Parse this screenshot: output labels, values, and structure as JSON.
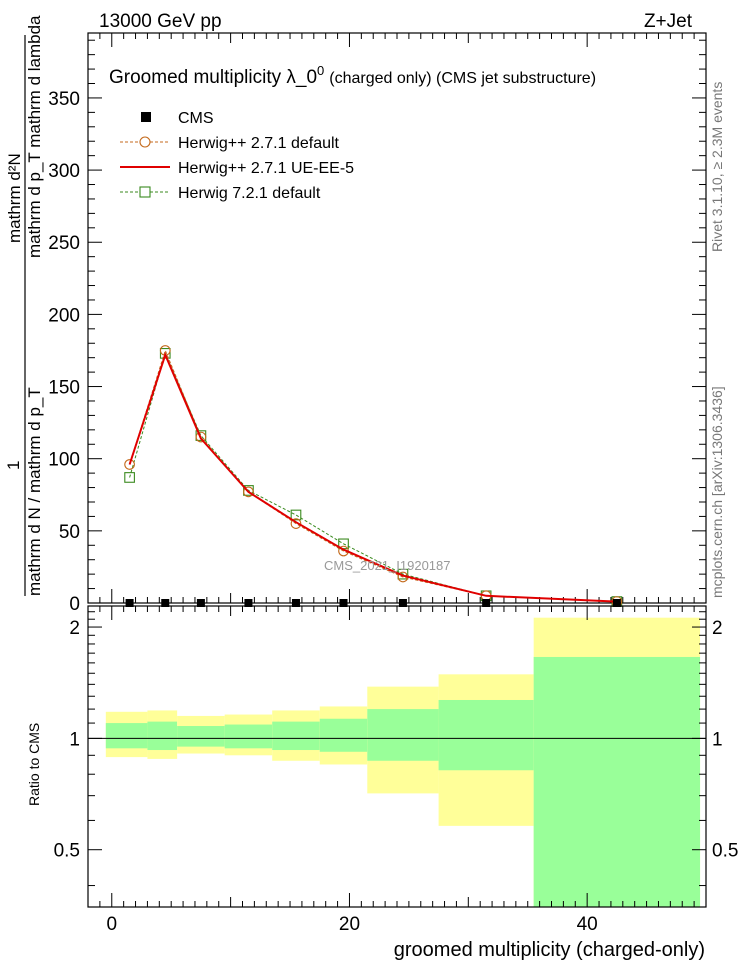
{
  "header": {
    "left": "13000 GeV pp",
    "right": "Z+Jet"
  },
  "side_labels": {
    "rivet": "Rivet 3.1.10, ≥ 2.3M events",
    "mcplots": "mcplots.cern.ch [arXiv:1306.3436]"
  },
  "watermark": "CMS_2021_I1920187",
  "chart_data": [
    {
      "type": "line",
      "title_main": "Groomed multiplicity  λ_0",
      "title_sup": "0",
      "title_small": "(charged only) (CMS jet substructure)",
      "ylabel_numerator": "mathrm d²N",
      "ylabel_numerator_sub": "mathrm d p_T mathrm d lambda",
      "ylabel_prefix": "1",
      "ylabel_denominator": "mathrm d N / mathrm d p_T",
      "xlim": [
        -2,
        50
      ],
      "ylim": [
        0,
        395
      ],
      "y_ticks": [
        0,
        50,
        100,
        150,
        200,
        250,
        300,
        350
      ],
      "series": [
        {
          "name": "CMS",
          "style": "marker-square",
          "color": "#000000",
          "x": [
            1.5,
            4.5,
            7.5,
            11.5,
            15.5,
            19.5,
            24.5,
            31.5,
            42.5
          ],
          "y": [
            0,
            0,
            0,
            0,
            0,
            0,
            0,
            0,
            0
          ]
        },
        {
          "name": "Herwig++ 2.7.1 default",
          "style": "dashed-circle",
          "color": "#c46a1c",
          "x": [
            1.5,
            4.5,
            7.5,
            11.5,
            15.5,
            19.5,
            24.5,
            31.5,
            42.5
          ],
          "y": [
            96,
            175,
            115,
            77,
            55,
            36,
            18,
            5,
            1
          ]
        },
        {
          "name": "Herwig++ 2.7.1 UE-EE-5",
          "style": "solid",
          "color": "#e00000",
          "x": [
            1.5,
            4.5,
            7.5,
            11.5,
            15.5,
            19.5,
            24.5,
            31.5,
            42.5
          ],
          "y": [
            96,
            172,
            114,
            77,
            56,
            37,
            19,
            5,
            1
          ]
        },
        {
          "name": "Herwig 7.2.1 default",
          "style": "dashed-square",
          "color": "#3a8a1e",
          "x": [
            1.5,
            4.5,
            7.5,
            11.5,
            15.5,
            19.5,
            24.5,
            31.5,
            42.5
          ],
          "y": [
            87,
            173,
            116,
            78,
            61,
            41,
            20,
            5,
            1
          ]
        }
      ]
    },
    {
      "type": "area",
      "ylabel": "Ratio to CMS",
      "xlabel": "groomed multiplicity (charged-only)",
      "xlim": [
        -2,
        50
      ],
      "ylim": [
        0.35,
        2.28
      ],
      "x_ticks": [
        0,
        20,
        40
      ],
      "y_ticks": [
        0.5,
        1,
        2
      ],
      "reference_line": 1,
      "bins": [
        {
          "lo": -0.5,
          "hi": 3.0,
          "yellow": [
            0.89,
            1.18
          ],
          "green": [
            0.94,
            1.1
          ]
        },
        {
          "lo": 3.0,
          "hi": 5.5,
          "yellow": [
            0.88,
            1.19
          ],
          "green": [
            0.93,
            1.11
          ]
        },
        {
          "lo": 5.5,
          "hi": 9.5,
          "yellow": [
            0.91,
            1.15
          ],
          "green": [
            0.95,
            1.08
          ]
        },
        {
          "lo": 9.5,
          "hi": 13.5,
          "yellow": [
            0.9,
            1.16
          ],
          "green": [
            0.94,
            1.09
          ]
        },
        {
          "lo": 13.5,
          "hi": 17.5,
          "yellow": [
            0.87,
            1.19
          ],
          "green": [
            0.93,
            1.11
          ]
        },
        {
          "lo": 17.5,
          "hi": 21.5,
          "yellow": [
            0.85,
            1.22
          ],
          "green": [
            0.92,
            1.13
          ]
        },
        {
          "lo": 21.5,
          "hi": 27.5,
          "yellow": [
            0.71,
            1.38
          ],
          "green": [
            0.87,
            1.2
          ]
        },
        {
          "lo": 27.5,
          "hi": 35.5,
          "yellow": [
            0.58,
            1.49
          ],
          "green": [
            0.82,
            1.27
          ]
        },
        {
          "lo": 35.5,
          "hi": 49.5,
          "yellow": [
            0.35,
            2.12
          ],
          "green": [
            0.35,
            1.66
          ]
        }
      ],
      "colors": {
        "yellow": "#ffff99",
        "green": "#99ff99"
      }
    }
  ]
}
